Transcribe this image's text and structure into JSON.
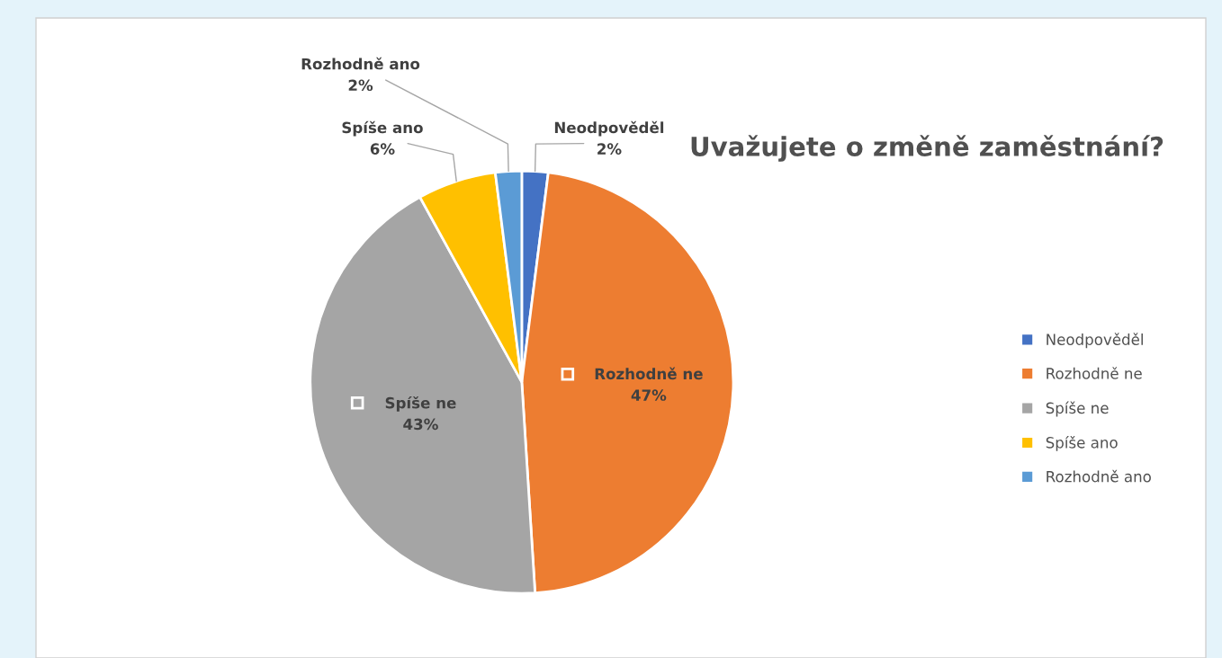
{
  "chart_data": {
    "type": "pie",
    "title": "Uvažujete o změně zaměstnání?",
    "categories": [
      "Neodpověděl",
      "Rozhodně ne",
      "Spíše ne",
      "Spíše ano",
      "Rozhodně ano"
    ],
    "values": [
      2,
      47,
      43,
      6,
      2
    ],
    "colors": [
      "#4472c4",
      "#ed7d31",
      "#a5a5a5",
      "#ffc000",
      "#5b9bd5"
    ],
    "value_labels": [
      "2%",
      "47%",
      "43%",
      "6%",
      "2%"
    ],
    "legend": "right"
  }
}
